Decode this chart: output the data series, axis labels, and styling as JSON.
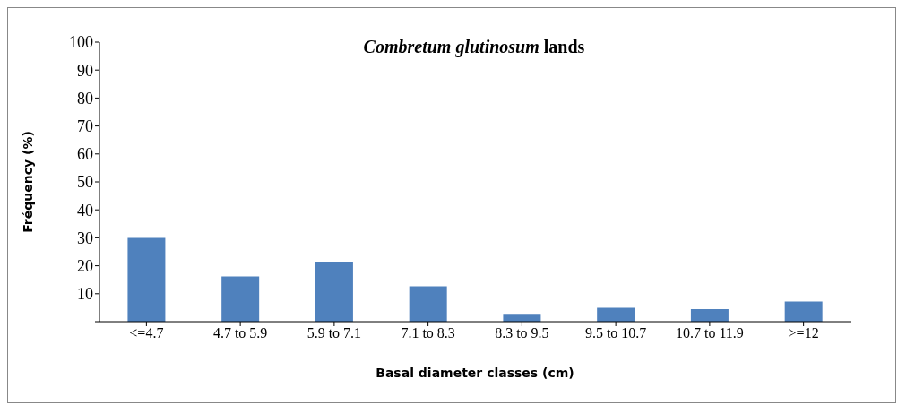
{
  "chart_data": {
    "type": "bar",
    "title": "Combretum glutinosum lands",
    "xlabel": "Basal diameter classes (cm)",
    "ylabel": "Fréquency (%)",
    "categories": [
      "<=4.7",
      "4.7 to 5.9",
      "5.9 to 7.1",
      "7.1 to 8.3",
      "8.3 to 9.5",
      "9.5 to 10.7",
      "10.7 to 11.9",
      ">=12"
    ],
    "values": [
      30,
      16.2,
      21.5,
      12.7,
      2.8,
      5,
      4.5,
      7.2
    ],
    "color": "#4f81bd",
    "ylim": [
      0,
      100
    ],
    "yticks": [
      {
        "value": 0,
        "label": null
      },
      10,
      20,
      30,
      40,
      50,
      60,
      70,
      80,
      90,
      100
    ],
    "grid": false
  }
}
